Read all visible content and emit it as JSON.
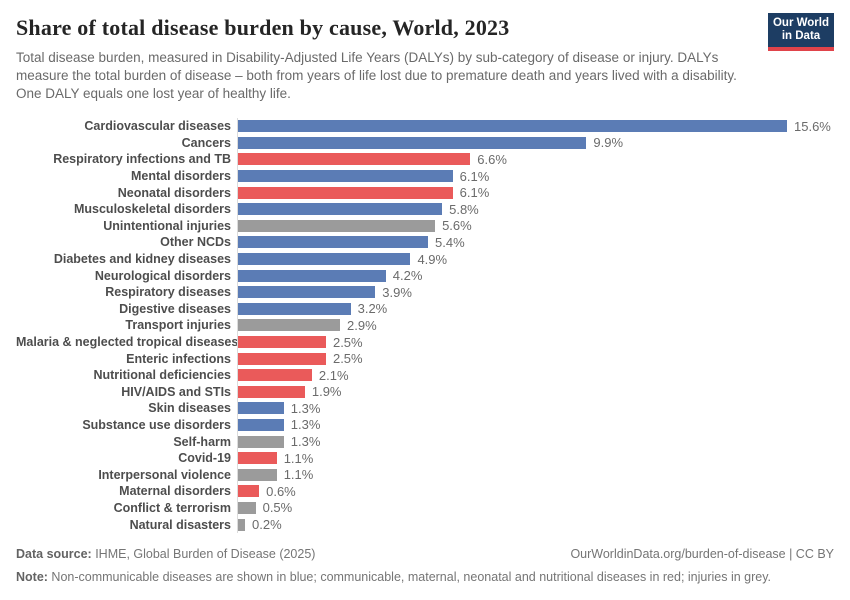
{
  "header": {
    "title": "Share of total disease burden by cause, World, 2023",
    "subtitle": "Total disease burden, measured in Disability-Adjusted Life Years (DALYs) by sub-category of disease or injury. DALYs measure the total burden of disease – both from years of life lost due to premature death and years lived with a disability. One DALY equals one lost year of healthy life.",
    "logo": {
      "line1": "Our World",
      "line2": "in Data"
    }
  },
  "chart_data": {
    "type": "bar",
    "orientation": "horizontal",
    "title": "Share of total disease burden by cause, World, 2023",
    "unit": "%",
    "xlim": [
      0,
      15.6
    ],
    "grid": false,
    "legend_position": "none",
    "categories": [
      "Cardiovascular diseases",
      "Cancers",
      "Respiratory infections and TB",
      "Mental disorders",
      "Neonatal disorders",
      "Musculoskeletal disorders",
      "Unintentional injuries",
      "Other NCDs",
      "Diabetes and kidney diseases",
      "Neurological disorders",
      "Respiratory diseases",
      "Digestive diseases",
      "Transport injuries",
      "Malaria & neglected tropical diseases",
      "Enteric infections",
      "Nutritional deficiencies",
      "HIV/AIDS and STIs",
      "Skin diseases",
      "Substance use disorders",
      "Self-harm",
      "Covid-19",
      "Interpersonal violence",
      "Maternal disorders",
      "Conflict & terrorism",
      "Natural disasters"
    ],
    "values": [
      15.6,
      9.9,
      6.6,
      6.1,
      6.1,
      5.8,
      5.6,
      5.4,
      4.9,
      4.2,
      3.9,
      3.2,
      2.9,
      2.5,
      2.5,
      2.1,
      1.9,
      1.3,
      1.3,
      1.3,
      1.1,
      1.1,
      0.6,
      0.5,
      0.2
    ],
    "value_labels": [
      "15.6%",
      "9.9%",
      "6.6%",
      "6.1%",
      "6.1%",
      "5.8%",
      "5.6%",
      "5.4%",
      "4.9%",
      "4.2%",
      "3.9%",
      "3.2%",
      "2.9%",
      "2.5%",
      "2.5%",
      "2.1%",
      "1.9%",
      "1.3%",
      "1.3%",
      "1.3%",
      "1.1%",
      "1.1%",
      "0.6%",
      "0.5%",
      "0.2%"
    ],
    "groups": [
      "ncd",
      "ncd",
      "communicable",
      "ncd",
      "communicable",
      "ncd",
      "injury",
      "ncd",
      "ncd",
      "ncd",
      "ncd",
      "ncd",
      "injury",
      "communicable",
      "communicable",
      "communicable",
      "communicable",
      "ncd",
      "ncd",
      "injury",
      "communicable",
      "injury",
      "communicable",
      "injury",
      "injury"
    ],
    "palette": {
      "ncd": "#5b7cb5",
      "communicable": "#ea5a5a",
      "injury": "#9b9b9b"
    }
  },
  "colors": {
    "blue": "#5b7cb5",
    "red": "#ea5a5a",
    "grey": "#9b9b9b",
    "logo_background": "#1d3d63",
    "logo_stripe": "#e0434a",
    "axis_line": "#dcdcdc"
  },
  "footer": {
    "data_source_label": "Data source:",
    "data_source_text": " IHME, Global Burden of Disease (2025)",
    "attribution": "OurWorldinData.org/burden-of-disease | CC BY",
    "note_label": "Note:",
    "note_text": " Non-communicable diseases are shown in blue; communicable, maternal, neonatal and nutritional diseases in red; injuries in grey."
  }
}
